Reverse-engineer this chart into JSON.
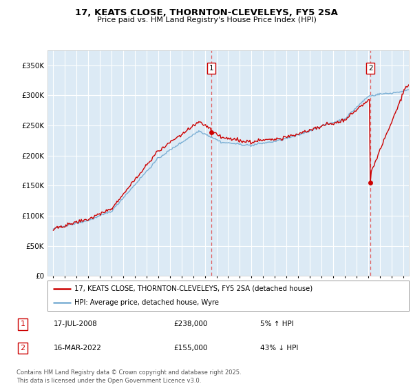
{
  "title": "17, KEATS CLOSE, THORNTON-CLEVELEYS, FY5 2SA",
  "subtitle": "Price paid vs. HM Land Registry's House Price Index (HPI)",
  "legend_line1": "17, KEATS CLOSE, THORNTON-CLEVELEYS, FY5 2SA (detached house)",
  "legend_line2": "HPI: Average price, detached house, Wyre",
  "annotation1_date": "17-JUL-2008",
  "annotation1_price": "£238,000",
  "annotation1_hpi": "5% ↑ HPI",
  "annotation2_date": "16-MAR-2022",
  "annotation2_price": "£155,000",
  "annotation2_hpi": "43% ↓ HPI",
  "footer": "Contains HM Land Registry data © Crown copyright and database right 2025.\nThis data is licensed under the Open Government Licence v3.0.",
  "hpi_color": "#7bafd4",
  "hpi_fill_color": "#dceaf5",
  "price_color": "#cc0000",
  "vline_color": "#e06060",
  "background_color": "#ffffff",
  "plot_bg_color": "#dceaf5",
  "ylim": [
    0,
    375000
  ],
  "yticks": [
    0,
    50000,
    100000,
    150000,
    200000,
    250000,
    300000,
    350000
  ],
  "ytick_labels": [
    "£0",
    "£50K",
    "£100K",
    "£150K",
    "£200K",
    "£250K",
    "£300K",
    "£350K"
  ],
  "sale1_x": 2008.54,
  "sale1_y": 238000,
  "sale2_x": 2022.21,
  "sale2_y": 155000,
  "xlim": [
    1994.5,
    2025.5
  ]
}
